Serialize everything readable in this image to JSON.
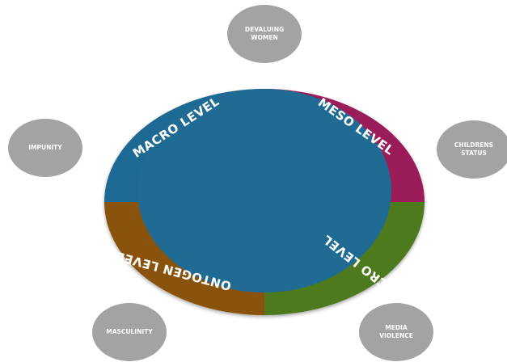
{
  "segments": [
    {
      "label": "MACRO LEVEL"
    },
    {
      "label": "MESO LEVEL"
    },
    {
      "label": "MICRO LEVEL"
    },
    {
      "label": "ONTOGEN LEVEL"
    }
  ],
  "factors": [
    {
      "lines": [
        "DEVALUING",
        "WOMEN"
      ]
    },
    {
      "lines": [
        "IMPUNITY"
      ]
    },
    {
      "lines": [
        "CHILDRENS",
        "STATUS"
      ]
    },
    {
      "lines": [
        "MASCULINITY"
      ]
    },
    {
      "lines": [
        "MEDIA",
        "VIOLENCE"
      ]
    }
  ]
}
